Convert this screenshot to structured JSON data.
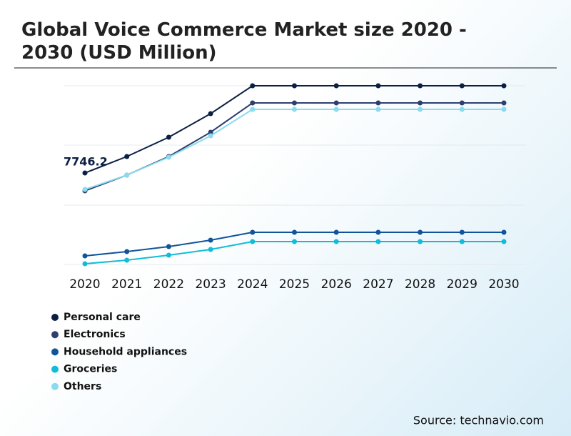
{
  "chart_data": {
    "type": "line",
    "title": "Global Voice Commerce Market size 2020 - 2030 (USD Million)",
    "source": "Source: technavio.com",
    "categories": [
      "2020",
      "2021",
      "2022",
      "2023",
      "2024",
      "2025",
      "2026",
      "2027",
      "2028",
      "2029",
      "2030"
    ],
    "ylim": [
      0,
      15130
    ],
    "grid": true,
    "series": [
      {
        "name": "Personal care",
        "color": "#0b1f42",
        "values": [
          7746.2,
          9138,
          10772,
          12770,
          15130,
          15130,
          15130,
          15130,
          15130,
          15130,
          15130
        ],
        "value_labels": [
          "7746.2",
          null,
          null,
          null,
          null,
          null,
          null,
          null,
          null,
          null,
          null
        ]
      },
      {
        "name": "Electronics",
        "color": "#2e3f6e",
        "values": [
          6234,
          7565,
          9138,
          11196,
          13677,
          13677,
          13677,
          13677,
          13677,
          13677,
          13677
        ]
      },
      {
        "name": "Household appliances",
        "color": "#11549a",
        "values": [
          726,
          1089,
          1513,
          2058,
          2723,
          2723,
          2723,
          2723,
          2723,
          2723,
          2723
        ]
      },
      {
        "name": "Groceries",
        "color": "#12bcd8",
        "values": [
          61,
          363,
          787,
          1271,
          1937,
          1937,
          1937,
          1937,
          1937,
          1937,
          1937
        ]
      },
      {
        "name": "Others",
        "color": "#8adaf0",
        "values": [
          6355,
          7565,
          9078,
          10894,
          13133,
          13133,
          13133,
          13133,
          13133,
          13133,
          13133
        ]
      }
    ]
  }
}
